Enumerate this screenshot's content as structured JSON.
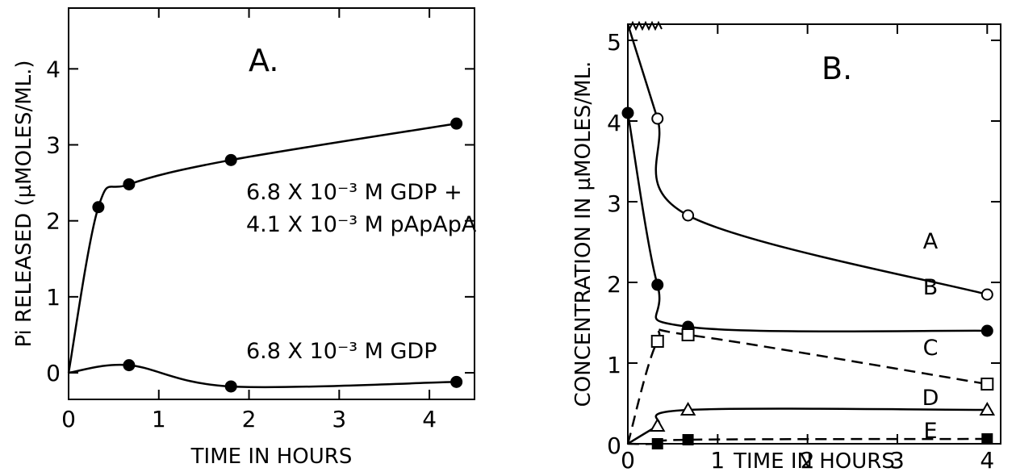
{
  "chart_data": [
    {
      "panel_label": "A.",
      "type": "line",
      "xlabel": "TIME IN HOURS",
      "ylabel": "Pi RELEASED (µMOLES/ML.)",
      "xlim": [
        0,
        4.5
      ],
      "ylim": [
        -0.35,
        4.8
      ],
      "xticks": [
        0,
        1,
        2,
        3,
        4
      ],
      "yticks": [
        0,
        1,
        2,
        3,
        4
      ],
      "grid": false,
      "series": [
        {
          "name": "6.8 X 10^-3 M GDP + 4.1 X 10^-3 M pApApA",
          "label_lines": [
            "6.8 X 10⁻³ M GDP +",
            "4.1 X 10⁻³ M pApApA"
          ],
          "marker": "filled-circle",
          "line": "solid",
          "x": [
            0,
            0.33,
            0.67,
            1.8,
            4.3
          ],
          "y": [
            0,
            2.18,
            2.48,
            2.8,
            3.28
          ],
          "marked": [
            false,
            true,
            true,
            true,
            true
          ]
        },
        {
          "name": "6.8 X 10^-3 M GDP",
          "label_lines": [
            "6.8 X 10⁻³ M GDP"
          ],
          "marker": "filled-circle",
          "line": "solid",
          "x": [
            0,
            0.67,
            1.8,
            4.3
          ],
          "y": [
            0,
            0.1,
            -0.18,
            -0.12
          ],
          "marked": [
            false,
            true,
            true,
            true
          ]
        }
      ]
    },
    {
      "panel_label": "B.",
      "type": "line",
      "xlabel": "TIME IN HOURS",
      "ylabel": "CONCENTRATION IN µMOLES/ML.",
      "xlim": [
        0,
        4.15
      ],
      "ylim": [
        0,
        5.2
      ],
      "xticks": [
        0,
        1,
        2,
        3,
        4
      ],
      "yticks": [
        0,
        1,
        2,
        3,
        4,
        5
      ],
      "grid": false,
      "series": [
        {
          "name": "A",
          "marker": "open-circle",
          "line": "solid",
          "x": [
            0,
            0.33,
            0.67,
            4
          ],
          "y": [
            5.2,
            4.03,
            2.83,
            1.85
          ],
          "marked": [
            false,
            true,
            true,
            true
          ]
        },
        {
          "name": "B",
          "marker": "filled-circle",
          "line": "solid",
          "x": [
            0,
            0.33,
            0.67,
            4
          ],
          "y": [
            4.1,
            1.97,
            1.45,
            1.4
          ],
          "marked": [
            true,
            true,
            true,
            true
          ]
        },
        {
          "name": "C",
          "marker": "open-square",
          "line": "dashed",
          "x": [
            0,
            0.33,
            0.67,
            4
          ],
          "y": [
            0,
            1.27,
            1.35,
            0.74
          ],
          "marked": [
            false,
            true,
            true,
            true
          ]
        },
        {
          "name": "D",
          "marker": "open-triangle",
          "line": "solid",
          "x": [
            0,
            0.33,
            0.67,
            4
          ],
          "y": [
            0,
            0.22,
            0.42,
            0.42
          ],
          "marked": [
            false,
            true,
            true,
            true
          ]
        },
        {
          "name": "E",
          "marker": "filled-square",
          "line": "dashed",
          "x": [
            0,
            0.33,
            0.67,
            4
          ],
          "y": [
            0,
            0.0,
            0.05,
            0.06
          ],
          "marked": [
            false,
            true,
            true,
            true
          ]
        }
      ]
    }
  ]
}
